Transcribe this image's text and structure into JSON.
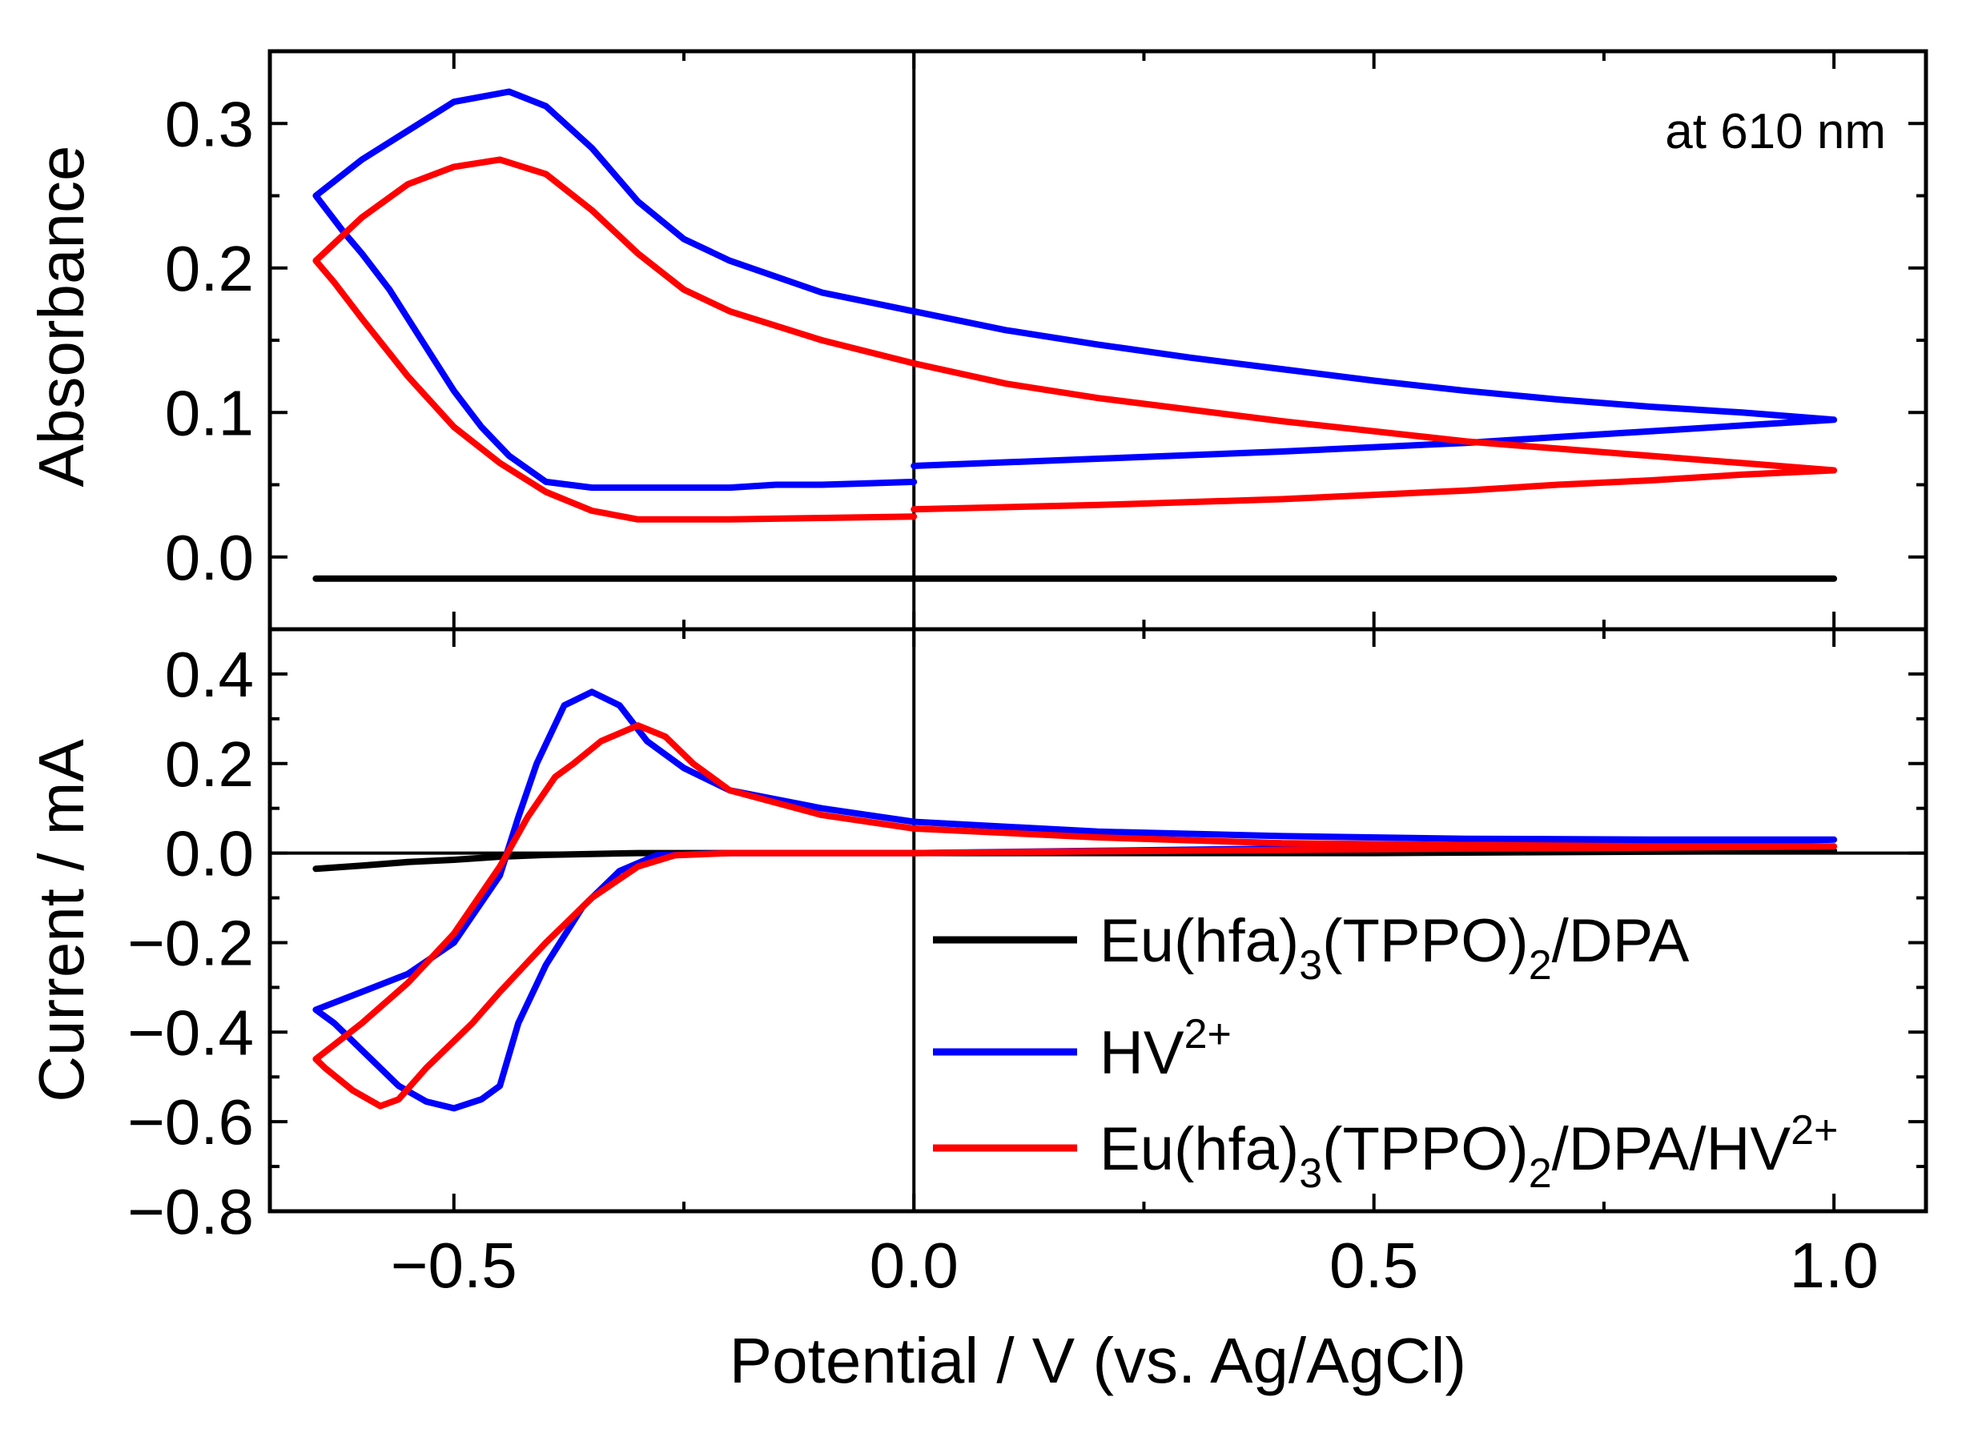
{
  "chart_data": [
    {
      "panel": "top",
      "type": "line",
      "title": "",
      "xlabel": "Potential / V (vs. Ag/AgCl)",
      "ylabel": "Absorbance",
      "xlim": [
        -0.7,
        1.1
      ],
      "ylim": [
        -0.05,
        0.35
      ],
      "xticks": [
        -0.5,
        0.0,
        0.5,
        1.0
      ],
      "xtick_labels": [
        "−0.5",
        "0.0",
        "0.5",
        "1.0"
      ],
      "yticks": [
        0.0,
        0.1,
        0.2,
        0.3
      ],
      "ytick_labels": [
        "0.0",
        "0.1",
        "0.2",
        "0.3"
      ],
      "annotation": "at 610 nm",
      "vline_x": 0.0,
      "series": [
        {
          "name": "Eu(hfa)3(TPPO)2/DPA",
          "color": "#000000",
          "points": [
            [
              -0.65,
              -0.015
            ],
            [
              -0.3,
              -0.015
            ],
            [
              0.0,
              -0.015
            ],
            [
              0.5,
              -0.015
            ],
            [
              1.0,
              -0.015
            ]
          ]
        },
        {
          "name": "HV2+",
          "color": "#0000ff",
          "points": [
            [
              0.0,
              0.063
            ],
            [
              0.2,
              0.068
            ],
            [
              0.4,
              0.073
            ],
            [
              0.5,
              0.076
            ],
            [
              0.6,
              0.079
            ],
            [
              0.7,
              0.083
            ],
            [
              0.8,
              0.087
            ],
            [
              0.9,
              0.091
            ],
            [
              1.0,
              0.095
            ],
            [
              0.9,
              0.1
            ],
            [
              0.8,
              0.104
            ],
            [
              0.7,
              0.109
            ],
            [
              0.6,
              0.115
            ],
            [
              0.5,
              0.122
            ],
            [
              0.4,
              0.13
            ],
            [
              0.3,
              0.138
            ],
            [
              0.2,
              0.147
            ],
            [
              0.1,
              0.157
            ],
            [
              0.0,
              0.17
            ],
            [
              -0.1,
              0.183
            ],
            [
              -0.2,
              0.205
            ],
            [
              -0.25,
              0.22
            ],
            [
              -0.3,
              0.246
            ],
            [
              -0.35,
              0.283
            ],
            [
              -0.4,
              0.312
            ],
            [
              -0.44,
              0.322
            ],
            [
              -0.5,
              0.315
            ],
            [
              -0.55,
              0.295
            ],
            [
              -0.6,
              0.275
            ],
            [
              -0.65,
              0.25
            ],
            [
              -0.62,
              0.225
            ],
            [
              -0.6,
              0.21
            ],
            [
              -0.57,
              0.185
            ],
            [
              -0.53,
              0.145
            ],
            [
              -0.5,
              0.115
            ],
            [
              -0.47,
              0.09
            ],
            [
              -0.44,
              0.07
            ],
            [
              -0.4,
              0.052
            ],
            [
              -0.35,
              0.048
            ],
            [
              -0.3,
              0.048
            ],
            [
              -0.2,
              0.048
            ],
            [
              -0.15,
              0.05
            ],
            [
              -0.1,
              0.05
            ],
            [
              -0.05,
              0.051
            ],
            [
              0.0,
              0.052
            ]
          ]
        },
        {
          "name": "Eu(hfa)3(TPPO)2/DPA/HV2+",
          "color": "#ff0000",
          "points": [
            [
              0.0,
              0.033
            ],
            [
              0.2,
              0.036
            ],
            [
              0.4,
              0.04
            ],
            [
              0.5,
              0.043
            ],
            [
              0.6,
              0.046
            ],
            [
              0.7,
              0.05
            ],
            [
              0.8,
              0.053
            ],
            [
              0.9,
              0.057
            ],
            [
              1.0,
              0.06
            ],
            [
              0.9,
              0.065
            ],
            [
              0.8,
              0.07
            ],
            [
              0.7,
              0.075
            ],
            [
              0.6,
              0.08
            ],
            [
              0.5,
              0.087
            ],
            [
              0.4,
              0.094
            ],
            [
              0.3,
              0.102
            ],
            [
              0.2,
              0.11
            ],
            [
              0.1,
              0.12
            ],
            [
              0.0,
              0.134
            ],
            [
              -0.1,
              0.15
            ],
            [
              -0.2,
              0.17
            ],
            [
              -0.25,
              0.185
            ],
            [
              -0.3,
              0.21
            ],
            [
              -0.35,
              0.24
            ],
            [
              -0.4,
              0.265
            ],
            [
              -0.45,
              0.275
            ],
            [
              -0.5,
              0.27
            ],
            [
              -0.55,
              0.258
            ],
            [
              -0.6,
              0.235
            ],
            [
              -0.65,
              0.205
            ],
            [
              -0.63,
              0.19
            ],
            [
              -0.6,
              0.165
            ],
            [
              -0.55,
              0.125
            ],
            [
              -0.5,
              0.09
            ],
            [
              -0.45,
              0.065
            ],
            [
              -0.4,
              0.045
            ],
            [
              -0.35,
              0.032
            ],
            [
              -0.3,
              0.026
            ],
            [
              -0.2,
              0.026
            ],
            [
              -0.1,
              0.027
            ],
            [
              0.0,
              0.028
            ]
          ]
        }
      ]
    },
    {
      "panel": "bottom",
      "type": "line",
      "title": "",
      "xlabel": "Potential / V (vs. Ag/AgCl)",
      "ylabel": "Current / mA",
      "xlim": [
        -0.7,
        1.1
      ],
      "ylim": [
        -0.8,
        0.5
      ],
      "xticks": [
        -0.5,
        0.0,
        0.5,
        1.0
      ],
      "xtick_labels": [
        "−0.5",
        "0.0",
        "0.5",
        "1.0"
      ],
      "yticks": [
        -0.8,
        -0.6,
        -0.4,
        -0.2,
        0.0,
        0.2,
        0.4
      ],
      "ytick_labels": [
        "−0.8",
        "−0.6",
        "−0.4",
        "−0.2",
        "0.0",
        "0.2",
        "0.4"
      ],
      "hline_y": 0.0,
      "vline_x": 0.0,
      "legend": {
        "placement": "bottom-right",
        "entries": [
          {
            "base": "Eu(hfa)",
            "sub1": "3",
            "mid": "(TPPO)",
            "sub2": "2",
            "tail": "/DPA",
            "sup": "",
            "color": "#000000"
          },
          {
            "base": "HV",
            "sub1": "",
            "mid": "",
            "sub2": "",
            "tail": "",
            "sup": "2+",
            "color": "#0000ff"
          },
          {
            "base": "Eu(hfa)",
            "sub1": "3",
            "mid": "(TPPO)",
            "sub2": "2",
            "tail": "/DPA/HV",
            "sup": "2+",
            "color": "#ff0000"
          }
        ]
      },
      "series": [
        {
          "name": "Eu(hfa)3(TPPO)2/DPA",
          "color": "#000000",
          "points": [
            [
              -0.65,
              -0.035
            ],
            [
              -0.6,
              -0.028
            ],
            [
              -0.55,
              -0.02
            ],
            [
              -0.5,
              -0.015
            ],
            [
              -0.45,
              -0.008
            ],
            [
              -0.4,
              -0.004
            ],
            [
              -0.3,
              0.0
            ],
            [
              0.0,
              0.0
            ],
            [
              0.5,
              0.0
            ],
            [
              1.0,
              0.005
            ],
            [
              0.5,
              0.003
            ],
            [
              0.0,
              0.0
            ]
          ]
        },
        {
          "name": "HV2+",
          "color": "#0000ff",
          "points": [
            [
              -0.65,
              -0.35
            ],
            [
              -0.6,
              -0.31
            ],
            [
              -0.55,
              -0.27
            ],
            [
              -0.5,
              -0.2
            ],
            [
              -0.45,
              -0.05
            ],
            [
              -0.43,
              0.08
            ],
            [
              -0.41,
              0.2
            ],
            [
              -0.38,
              0.33
            ],
            [
              -0.35,
              0.36
            ],
            [
              -0.32,
              0.33
            ],
            [
              -0.29,
              0.25
            ],
            [
              -0.25,
              0.19
            ],
            [
              -0.2,
              0.14
            ],
            [
              -0.1,
              0.1
            ],
            [
              0.0,
              0.07
            ],
            [
              0.2,
              0.048
            ],
            [
              0.4,
              0.038
            ],
            [
              0.6,
              0.032
            ],
            [
              0.8,
              0.03
            ],
            [
              1.0,
              0.03
            ],
            [
              0.8,
              0.02
            ],
            [
              0.6,
              0.015
            ],
            [
              0.4,
              0.01
            ],
            [
              0.2,
              0.005
            ],
            [
              0.0,
              0.0
            ],
            [
              -0.2,
              0.0
            ],
            [
              -0.28,
              -0.005
            ],
            [
              -0.32,
              -0.04
            ],
            [
              -0.36,
              -0.12
            ],
            [
              -0.4,
              -0.25
            ],
            [
              -0.43,
              -0.38
            ],
            [
              -0.45,
              -0.52
            ],
            [
              -0.47,
              -0.55
            ],
            [
              -0.5,
              -0.57
            ],
            [
              -0.53,
              -0.555
            ],
            [
              -0.56,
              -0.52
            ],
            [
              -0.6,
              -0.44
            ],
            [
              -0.63,
              -0.38
            ],
            [
              -0.65,
              -0.35
            ]
          ]
        },
        {
          "name": "Eu(hfa)3(TPPO)2/DPA/HV2+",
          "color": "#ff0000",
          "points": [
            [
              -0.65,
              -0.46
            ],
            [
              -0.6,
              -0.38
            ],
            [
              -0.55,
              -0.29
            ],
            [
              -0.5,
              -0.18
            ],
            [
              -0.45,
              -0.03
            ],
            [
              -0.42,
              0.08
            ],
            [
              -0.39,
              0.17
            ],
            [
              -0.37,
              0.2
            ],
            [
              -0.34,
              0.25
            ],
            [
              -0.3,
              0.285
            ],
            [
              -0.27,
              0.26
            ],
            [
              -0.24,
              0.2
            ],
            [
              -0.2,
              0.14
            ],
            [
              -0.1,
              0.085
            ],
            [
              0.0,
              0.055
            ],
            [
              0.2,
              0.035
            ],
            [
              0.4,
              0.022
            ],
            [
              0.6,
              0.018
            ],
            [
              0.8,
              0.015
            ],
            [
              1.0,
              0.015
            ],
            [
              0.8,
              0.012
            ],
            [
              0.6,
              0.01
            ],
            [
              0.4,
              0.007
            ],
            [
              0.2,
              0.004
            ],
            [
              0.0,
              0.0
            ],
            [
              -0.2,
              0.0
            ],
            [
              -0.26,
              -0.005
            ],
            [
              -0.3,
              -0.03
            ],
            [
              -0.35,
              -0.1
            ],
            [
              -0.4,
              -0.2
            ],
            [
              -0.45,
              -0.31
            ],
            [
              -0.48,
              -0.38
            ],
            [
              -0.5,
              -0.42
            ],
            [
              -0.53,
              -0.48
            ],
            [
              -0.56,
              -0.55
            ],
            [
              -0.58,
              -0.565
            ],
            [
              -0.61,
              -0.53
            ],
            [
              -0.64,
              -0.48
            ],
            [
              -0.65,
              -0.46
            ]
          ]
        }
      ]
    }
  ]
}
